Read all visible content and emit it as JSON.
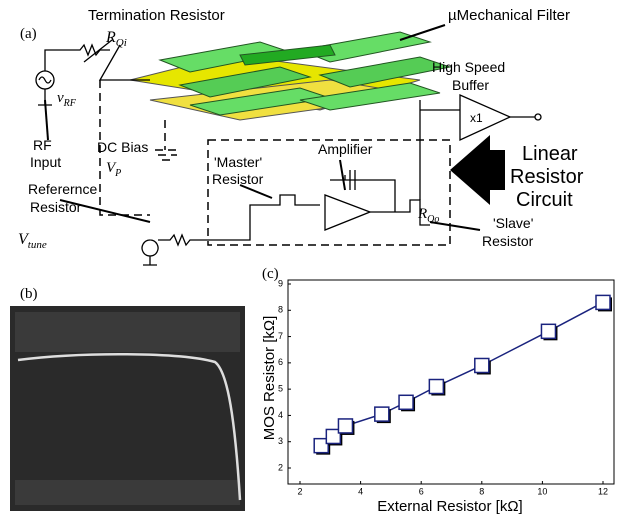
{
  "figure": {
    "panel_a": "(a)",
    "panel_b": "(b)",
    "panel_c": "(c)",
    "termination_resistor": "Termination  Resistor",
    "r_qi": {
      "main": "R",
      "sub": "Qi"
    },
    "v_rf": {
      "main": "v",
      "sub": "RF"
    },
    "rf_input": [
      "RF",
      "Input"
    ],
    "dc_bias": "DC Bias",
    "v_p": {
      "main": "V",
      "sub": "P"
    },
    "mechanical_filter": "µMechanical Filter",
    "buffer": [
      "High Speed",
      "Buffer"
    ],
    "buffer_gain": "x1",
    "linear_resistor_circuit": [
      "Linear",
      "Resistor",
      "Circuit"
    ],
    "master_resistor": [
      "'Master'",
      "Resistor"
    ],
    "amplifier": "Amplifier",
    "reference_resistor": [
      "Referernce",
      "Resistor"
    ],
    "v_tune": {
      "main": "V",
      "sub": "tune"
    },
    "r_qo": {
      "main": "R",
      "sub": "Qo"
    },
    "slave_resistor": [
      "'Slave'",
      "Resistor"
    ]
  },
  "chart_data": {
    "type": "line",
    "marker": "square",
    "color": "#1a237e",
    "x_label": "External Resistor [kΩ]",
    "y_label": "MOS Resistor [kΩ]",
    "x": [
      2.7,
      3.1,
      3.5,
      4.7,
      5.5,
      6.5,
      8,
      10.2,
      12
    ],
    "values": [
      2.85,
      3.2,
      3.6,
      4.05,
      4.5,
      5.1,
      5.9,
      7.2,
      8.3
    ],
    "xlim": [
      2,
      12
    ],
    "ylim": [
      2,
      9
    ],
    "xticks": [
      2,
      4,
      6,
      8,
      10,
      12
    ],
    "yticks": [
      2,
      3,
      4,
      5,
      6,
      7,
      8,
      9
    ]
  }
}
